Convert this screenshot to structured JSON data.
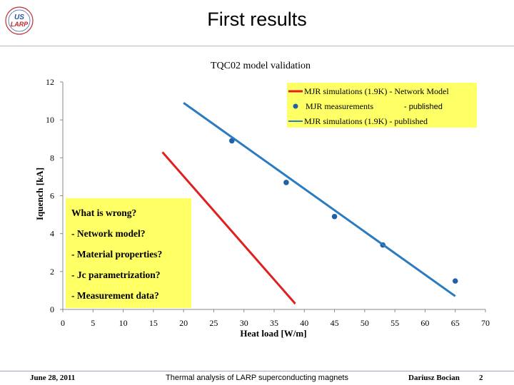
{
  "slide": {
    "title": "First results",
    "logo_text": [
      "US",
      "LARP"
    ]
  },
  "footer": {
    "date": "June 28, 2011",
    "center": "Thermal analysis of LARP superconducting magnets",
    "author": "Dariusz Bocian",
    "page": "2"
  },
  "colors": {
    "network_model": "#e02020",
    "measurements": "#2060a8",
    "published": "#2b7bc0",
    "legend_bg": "#ffff66",
    "callout_bg": "#ffff66"
  },
  "chart_data": {
    "type": "line",
    "title": "TQC02 model validation",
    "xlabel": "Heat load [W/m]",
    "ylabel": "Iquench [kA]",
    "xlim": [
      0,
      70
    ],
    "ylim": [
      0,
      12
    ],
    "xticks": [
      0,
      5,
      10,
      15,
      20,
      25,
      30,
      35,
      40,
      45,
      50,
      55,
      60,
      65,
      70
    ],
    "yticks": [
      0,
      2,
      4,
      6,
      8,
      10,
      12
    ],
    "grid": false,
    "legend_position": "top-right",
    "series": [
      {
        "name": "MJR simulations (1.9K) - Network Model",
        "kind": "line",
        "x": [
          16.5,
          38.5
        ],
        "y": [
          8.3,
          0.3
        ]
      },
      {
        "name": "MJR measurements",
        "name_suffix": "- published",
        "kind": "scatter",
        "x": [
          28,
          37,
          45,
          53,
          65
        ],
        "y": [
          8.9,
          6.7,
          4.9,
          3.4,
          1.5
        ]
      },
      {
        "name": "MJR simulations (1.9K) - published",
        "kind": "line",
        "x": [
          20,
          65
        ],
        "y": [
          10.9,
          0.7
        ]
      }
    ],
    "annotations": [
      "What is wrong?",
      "- Network model?",
      "- Material properties?",
      "- Jc parametrization?",
      "- Measurement data?"
    ]
  }
}
